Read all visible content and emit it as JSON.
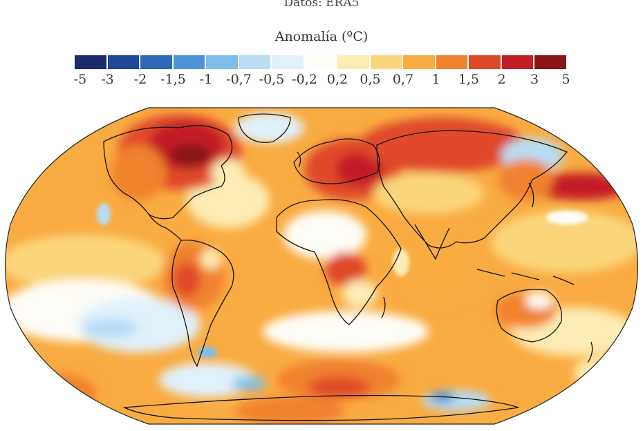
{
  "source": "Datos: ERA5",
  "legend": {
    "title": "Anomalía (ºC)",
    "colors": [
      "#1a2c6e",
      "#1f4898",
      "#2e68b8",
      "#4b93d6",
      "#7dbfea",
      "#b7dcf4",
      "#e1f1fa",
      "#fffdf7",
      "#fdecb4",
      "#fbd57c",
      "#f9ac41",
      "#f1822d",
      "#e0482a",
      "#c41f25",
      "#8a1518"
    ],
    "labels": [
      "-5",
      "-3",
      "-2",
      "-1,5",
      "-1",
      "-0,7",
      "-0,5",
      "-0,2",
      "0,2",
      "0,5",
      "0,7",
      "1",
      "1,5",
      "2",
      "3",
      "5"
    ]
  }
}
